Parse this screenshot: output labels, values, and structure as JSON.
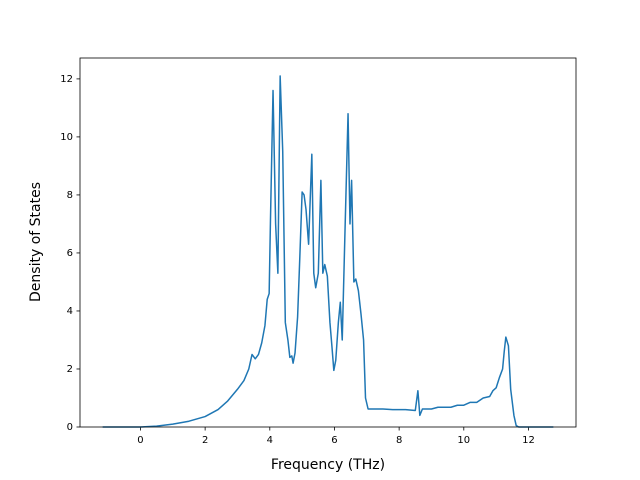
{
  "chart_data": {
    "type": "line",
    "xlabel": "Frequency (THz)",
    "ylabel": "Density of States",
    "xlim": [
      -1.87,
      13.47
    ],
    "ylim": [
      0,
      12.72
    ],
    "xticks": [
      0,
      2,
      4,
      6,
      8,
      10,
      12
    ],
    "yticks": [
      0,
      2,
      4,
      6,
      8,
      10,
      12
    ],
    "grid": false,
    "series": [
      {
        "color": "#1f77b4",
        "x": [
          -1.17,
          0,
          0.5,
          1,
          1.5,
          2,
          2.4,
          2.7,
          3.0,
          3.2,
          3.35,
          3.45,
          3.55,
          3.65,
          3.75,
          3.85,
          3.92,
          3.98,
          4.02,
          4.1,
          4.18,
          4.25,
          4.32,
          4.4,
          4.48,
          4.56,
          4.62,
          4.68,
          4.72,
          4.78,
          4.86,
          4.93,
          5.0,
          5.06,
          5.12,
          5.2,
          5.3,
          5.36,
          5.42,
          5.5,
          5.58,
          5.64,
          5.7,
          5.78,
          5.86,
          5.92,
          5.98,
          6.04,
          6.12,
          6.18,
          6.24,
          6.32,
          6.42,
          6.48,
          6.53,
          6.6,
          6.66,
          6.74,
          6.82,
          6.9,
          6.96,
          7.04,
          7.5,
          7.8,
          8.0,
          8.2,
          8.5,
          8.58,
          8.64,
          8.72,
          9.0,
          9.2,
          9.6,
          9.8,
          10.0,
          10.2,
          10.4,
          10.6,
          10.8,
          10.9,
          11.0,
          11.1,
          11.2,
          11.25,
          11.3,
          11.38,
          11.45,
          11.55,
          11.62,
          11.7,
          12.77
        ],
        "values": [
          0,
          0,
          0.03,
          0.1,
          0.2,
          0.36,
          0.6,
          0.9,
          1.3,
          1.6,
          2.0,
          2.5,
          2.35,
          2.5,
          2.9,
          3.5,
          4.4,
          4.6,
          7.1,
          11.6,
          7.0,
          5.3,
          12.1,
          9.5,
          3.6,
          3.0,
          2.4,
          2.45,
          2.2,
          2.55,
          3.8,
          5.9,
          8.1,
          8.0,
          7.5,
          6.3,
          9.4,
          5.3,
          4.8,
          5.3,
          8.5,
          5.3,
          5.6,
          5.2,
          3.6,
          2.8,
          1.95,
          2.3,
          3.6,
          4.3,
          3.0,
          6.5,
          10.8,
          7.0,
          8.5,
          5.0,
          5.1,
          4.7,
          3.9,
          3.0,
          1.0,
          0.62,
          0.62,
          0.6,
          0.6,
          0.6,
          0.57,
          1.25,
          0.4,
          0.62,
          0.62,
          0.68,
          0.68,
          0.75,
          0.75,
          0.85,
          0.85,
          1.0,
          1.05,
          1.25,
          1.35,
          1.7,
          2.0,
          2.6,
          3.1,
          2.8,
          1.3,
          0.4,
          0.05,
          0,
          0
        ]
      }
    ]
  }
}
